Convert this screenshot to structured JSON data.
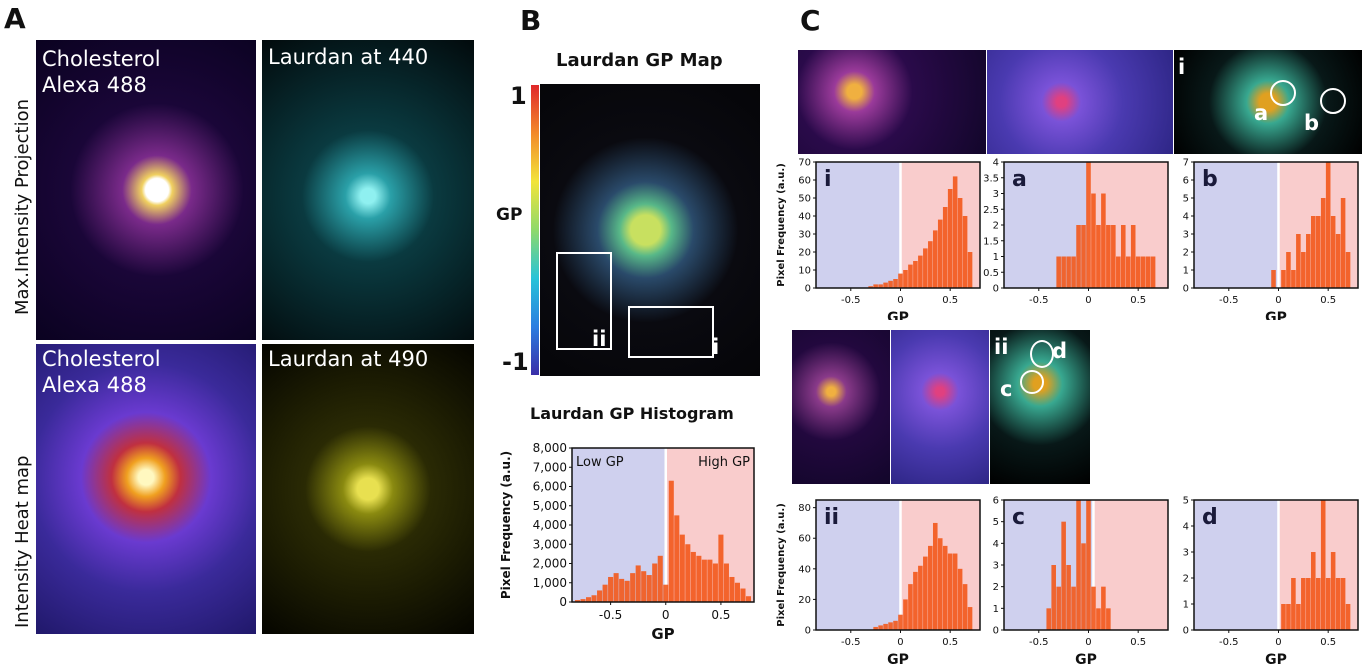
{
  "panels": {
    "A": {
      "letter": "A",
      "row_labels": [
        "Max.Intensity Projection",
        "Intensity Heat map"
      ],
      "img1_label_line1": "Cholesterol",
      "img1_label_line2": "Alexa 488",
      "img2_label": "Laurdan at 440",
      "img3_label_line1": "Cholesterol",
      "img3_label_line2": "Alexa 488",
      "img4_label": "Laurdan at 490"
    },
    "B": {
      "letter": "B",
      "map_title": "Laurdan GP Map",
      "colorbar_top": "1",
      "colorbar_bottom": "-1",
      "colorbar_label": "GP",
      "roi_labels": [
        "ii",
        "i"
      ],
      "hist_title": "Laurdan GP Histogram",
      "low_label": "Low GP",
      "high_label": "High GP"
    },
    "C": {
      "letter": "C",
      "roi_i_label": "i",
      "roi_ii_label": "ii",
      "spot_labels": [
        "a",
        "b",
        "c",
        "d"
      ]
    }
  },
  "colors": {
    "low_region": "#cfd0ee",
    "high_region": "#f9cccc",
    "bars": "#f25a1e",
    "gp_colorbar": [
      "#3a2ea8",
      "#2b7de0",
      "#27c3d8",
      "#8fd96a",
      "#f2e43a",
      "#f28a2a",
      "#e0282a"
    ]
  },
  "chart_data": [
    {
      "id": "B-hist",
      "type": "bar",
      "title": "Laurdan GP Histogram",
      "xlabel": "GP",
      "ylabel": "Pixel Frequency (a.u.)",
      "xlim": [
        -0.85,
        0.8
      ],
      "ylim": [
        0,
        8000
      ],
      "x_ticks": [
        "-0.5",
        "0",
        "0.5"
      ],
      "y_ticks": [
        "0",
        "1,000",
        "2,000",
        "3,000",
        "4,000",
        "5,000",
        "6,000",
        "7,000",
        "8,000"
      ],
      "region_split": 0,
      "x": [
        -0.8,
        -0.75,
        -0.7,
        -0.65,
        -0.6,
        -0.55,
        -0.5,
        -0.45,
        -0.4,
        -0.35,
        -0.3,
        -0.25,
        -0.2,
        -0.15,
        -0.1,
        -0.05,
        0,
        0.05,
        0.1,
        0.15,
        0.2,
        0.25,
        0.3,
        0.35,
        0.4,
        0.45,
        0.5,
        0.55,
        0.6,
        0.65,
        0.7,
        0.75
      ],
      "values": [
        100,
        150,
        250,
        350,
        600,
        900,
        1300,
        1500,
        1200,
        1100,
        1500,
        1900,
        1600,
        1400,
        2000,
        2400,
        900,
        6300,
        4500,
        3500,
        3000,
        2600,
        2400,
        2200,
        2200,
        2000,
        3500,
        2000,
        1300,
        1000,
        700,
        300
      ]
    },
    {
      "id": "C-i",
      "type": "bar",
      "label": "i",
      "xlabel": "GP",
      "ylabel": "Pixel Frequency (a.u.)",
      "xlim": [
        -0.85,
        0.8
      ],
      "ylim": [
        0,
        70
      ],
      "x_ticks": [
        "-0.5",
        "0",
        "0.5"
      ],
      "y_ticks": [
        "0",
        "10",
        "20",
        "30",
        "40",
        "50",
        "60",
        "70"
      ],
      "region_split": 0,
      "x": [
        -0.3,
        -0.25,
        -0.2,
        -0.15,
        -0.1,
        -0.05,
        0,
        0.05,
        0.1,
        0.15,
        0.2,
        0.25,
        0.3,
        0.35,
        0.4,
        0.45,
        0.5,
        0.55,
        0.6,
        0.65,
        0.7
      ],
      "values": [
        1,
        2,
        2,
        3,
        4,
        5,
        8,
        10,
        13,
        15,
        18,
        22,
        26,
        32,
        38,
        45,
        55,
        62,
        50,
        40,
        20
      ]
    },
    {
      "id": "C-a",
      "type": "bar",
      "label": "a",
      "xlabel": "",
      "xlim": [
        -0.85,
        0.8
      ],
      "ylim": [
        0,
        4
      ],
      "x_ticks": [
        "-0.5",
        "0",
        "0.5"
      ],
      "y_ticks": [
        "0",
        "0.5",
        "1",
        "1.5",
        "2",
        "2.5",
        "3",
        "3.5",
        "4"
      ],
      "region_split": 0,
      "x": [
        -0.3,
        -0.25,
        -0.2,
        -0.15,
        -0.1,
        -0.05,
        0,
        0.05,
        0.1,
        0.15,
        0.2,
        0.25,
        0.3,
        0.35,
        0.4,
        0.45,
        0.5,
        0.55,
        0.6,
        0.65
      ],
      "values": [
        1,
        1,
        1,
        1,
        2,
        2,
        4,
        3,
        2,
        3,
        2,
        2,
        1,
        2,
        1,
        2,
        1,
        1,
        1,
        1
      ]
    },
    {
      "id": "C-b",
      "type": "bar",
      "label": "b",
      "xlabel": "GP",
      "xlim": [
        -0.85,
        0.8
      ],
      "ylim": [
        0,
        7
      ],
      "x_ticks": [
        "-0.5",
        "0",
        "0.5"
      ],
      "y_ticks": [
        "0",
        "1",
        "2",
        "3",
        "4",
        "5",
        "6",
        "7"
      ],
      "region_split": 0,
      "x": [
        -0.05,
        0.05,
        0.1,
        0.15,
        0.2,
        0.25,
        0.3,
        0.35,
        0.4,
        0.45,
        0.5,
        0.55,
        0.6,
        0.65,
        0.7
      ],
      "values": [
        1,
        1,
        2,
        1,
        3,
        2,
        3,
        4,
        4,
        5,
        7,
        4,
        3,
        5,
        2
      ]
    },
    {
      "id": "C-ii",
      "type": "bar",
      "label": "ii",
      "xlabel": "GP",
      "ylabel": "Pixel Frequency (a.u.)",
      "xlim": [
        -0.85,
        0.8
      ],
      "ylim": [
        0,
        85
      ],
      "x_ticks": [
        "-0.5",
        "0",
        "0.5"
      ],
      "y_ticks": [
        "0",
        "20",
        "40",
        "60",
        "80"
      ],
      "region_split": 0,
      "x": [
        -0.25,
        -0.2,
        -0.15,
        -0.1,
        -0.05,
        0,
        0.05,
        0.1,
        0.15,
        0.2,
        0.25,
        0.3,
        0.35,
        0.4,
        0.45,
        0.5,
        0.55,
        0.6,
        0.65,
        0.7
      ],
      "values": [
        2,
        3,
        4,
        5,
        6,
        10,
        20,
        30,
        38,
        42,
        48,
        55,
        70,
        60,
        55,
        50,
        50,
        40,
        30,
        15
      ]
    },
    {
      "id": "C-c",
      "type": "bar",
      "label": "c",
      "xlabel": "GP",
      "xlim": [
        -0.85,
        0.8
      ],
      "ylim": [
        0,
        6
      ],
      "x_ticks": [
        "-0.5",
        "0",
        "0.5"
      ],
      "y_ticks": [
        "0",
        "1",
        "2",
        "3",
        "4",
        "5",
        "6"
      ],
      "region_split": 0.05,
      "x": [
        -0.4,
        -0.35,
        -0.3,
        -0.25,
        -0.2,
        -0.15,
        -0.1,
        -0.05,
        0,
        0.05,
        0.1,
        0.15,
        0.2
      ],
      "values": [
        1,
        3,
        2,
        5,
        3,
        2,
        6,
        4,
        6,
        2,
        1,
        2,
        1
      ]
    },
    {
      "id": "C-d",
      "type": "bar",
      "label": "d",
      "xlabel": "GP",
      "xlim": [
        -0.85,
        0.8
      ],
      "ylim": [
        0,
        5
      ],
      "x_ticks": [
        "-0.5",
        "0",
        "0.5"
      ],
      "y_ticks": [
        "0",
        "1",
        "2",
        "3",
        "4",
        "5"
      ],
      "region_split": 0,
      "x": [
        0.05,
        0.1,
        0.15,
        0.2,
        0.25,
        0.3,
        0.35,
        0.4,
        0.45,
        0.5,
        0.55,
        0.6,
        0.65,
        0.7
      ],
      "values": [
        1,
        1,
        2,
        1,
        2,
        2,
        3,
        2,
        5,
        2,
        3,
        2,
        2,
        1
      ]
    }
  ]
}
